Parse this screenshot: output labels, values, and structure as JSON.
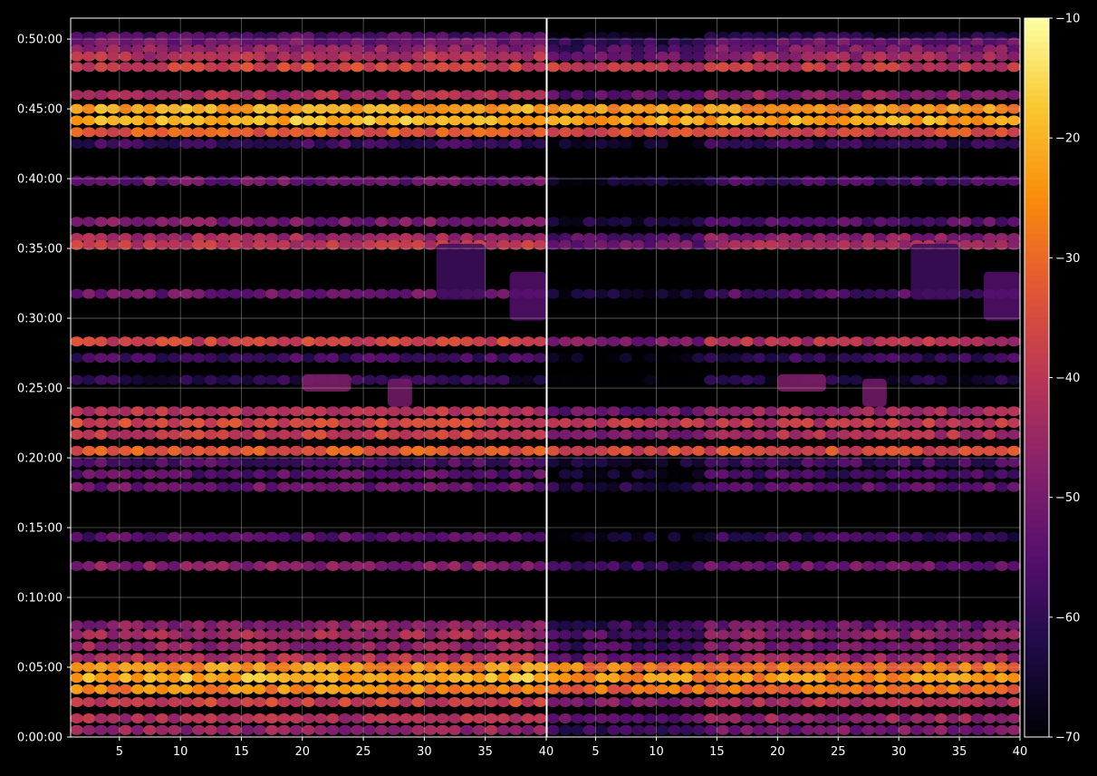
{
  "chart_data": {
    "type": "heatmap",
    "title": "",
    "background": "#000000",
    "grid": true,
    "colormap": "inferno",
    "panels": [
      {
        "xlim": [
          1,
          40
        ],
        "xticks": [
          5,
          10,
          15,
          20,
          25,
          30,
          35,
          40
        ],
        "xtick_labels": [
          "5",
          "10",
          "15",
          "20",
          "25",
          "30",
          "35",
          "40"
        ]
      },
      {
        "xlim": [
          1,
          40
        ],
        "xticks": [
          5,
          10,
          15,
          20,
          25,
          30,
          35,
          40
        ],
        "xtick_labels": [
          "5",
          "10",
          "15",
          "20",
          "25",
          "30",
          "35",
          "40"
        ]
      }
    ],
    "y_axis": {
      "ylim_seconds": [
        0,
        3090
      ],
      "ticks_seconds": [
        0,
        300,
        600,
        900,
        1200,
        1500,
        1800,
        2100,
        2400,
        2700,
        3000
      ],
      "tick_labels": [
        "0:00:00",
        "0:05:00",
        "0:10:00",
        "0:15:00",
        "0:20:00",
        "0:25:00",
        "0:30:00",
        "0:35:00",
        "0:40:00",
        "0:45:00",
        "0:50:00"
      ]
    },
    "colorbar": {
      "range": [
        -70,
        -10
      ],
      "ticks": [
        -70,
        -60,
        -50,
        -40,
        -30,
        -20,
        -10
      ],
      "tick_labels": [
        "−70",
        "−60",
        "−50",
        "−40",
        "−30",
        "−20",
        "−10"
      ]
    },
    "bands": [
      {
        "t": 3010,
        "left": -56,
        "right": -62
      },
      {
        "t": 2985,
        "left": -51,
        "right": -53
      },
      {
        "t": 2955,
        "left": -47,
        "right": -49
      },
      {
        "t": 2925,
        "left": -42,
        "right": -45
      },
      {
        "t": 2880,
        "left": -37,
        "right": -40
      },
      {
        "t": 2760,
        "left": -43,
        "right": -47
      },
      {
        "t": 2700,
        "left": -22,
        "right": -25
      },
      {
        "t": 2650,
        "left": -20,
        "right": -22
      },
      {
        "t": 2600,
        "left": -33,
        "right": -35
      },
      {
        "t": 2550,
        "left": -58,
        "right": -60
      },
      {
        "t": 2390,
        "left": -52,
        "right": -58
      },
      {
        "t": 2215,
        "left": -50,
        "right": -55
      },
      {
        "t": 2145,
        "left": -44,
        "right": -48
      },
      {
        "t": 2115,
        "left": -40,
        "right": -44
      },
      {
        "t": 1905,
        "left": -52,
        "right": -56
      },
      {
        "t": 1700,
        "left": -38,
        "right": -42
      },
      {
        "t": 1630,
        "left": -58,
        "right": -60
      },
      {
        "t": 1535,
        "left": -62,
        "right": -64
      },
      {
        "t": 1400,
        "left": -40,
        "right": -45
      },
      {
        "t": 1350,
        "left": -36,
        "right": -40
      },
      {
        "t": 1300,
        "left": -38,
        "right": -42
      },
      {
        "t": 1230,
        "left": -33,
        "right": -36
      },
      {
        "t": 1180,
        "left": -56,
        "right": -58
      },
      {
        "t": 1130,
        "left": -55,
        "right": -58
      },
      {
        "t": 1075,
        "left": -52,
        "right": -55
      },
      {
        "t": 860,
        "left": -55,
        "right": -60
      },
      {
        "t": 735,
        "left": -48,
        "right": -52
      },
      {
        "t": 480,
        "left": -48,
        "right": -52
      },
      {
        "t": 440,
        "left": -44,
        "right": -48
      },
      {
        "t": 390,
        "left": -46,
        "right": -50
      },
      {
        "t": 340,
        "left": -42,
        "right": -46
      },
      {
        "t": 300,
        "left": -24,
        "right": -28
      },
      {
        "t": 255,
        "left": -20,
        "right": -25
      },
      {
        "t": 205,
        "left": -26,
        "right": -30
      },
      {
        "t": 150,
        "left": -38,
        "right": -42
      },
      {
        "t": 80,
        "left": -42,
        "right": -46
      },
      {
        "t": 30,
        "left": -46,
        "right": -50
      }
    ],
    "features": [
      {
        "t_from": 1485,
        "t_to": 1560,
        "x_from": 20,
        "x_to": 23,
        "level": -48
      },
      {
        "t_from": 1420,
        "t_to": 1540,
        "x_from": 27,
        "x_to": 28,
        "level": -50
      },
      {
        "t_from": 1790,
        "t_to": 2000,
        "x_from": 37,
        "x_to": 39,
        "level": -55
      },
      {
        "t_from": 1880,
        "t_to": 2120,
        "x_from": 31,
        "x_to": 34,
        "level": -58
      }
    ]
  }
}
